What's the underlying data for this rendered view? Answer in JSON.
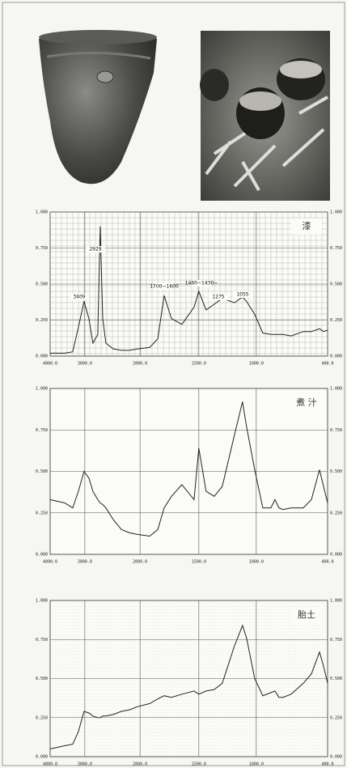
{
  "chart_data": [
    {
      "type": "line",
      "title": "漆",
      "color": "#222222",
      "x": [
        4000,
        3581,
        3349,
        3186,
        3023,
        2926,
        2853,
        2765,
        2721,
        2676,
        2618,
        2485,
        2338,
        2191,
        2044,
        1918,
        1849,
        1795,
        1733,
        1644,
        1541,
        1500,
        1437,
        1366,
        1296,
        1190,
        1120,
        1085,
        1014,
        945,
        877,
        843,
        809,
        775,
        707,
        604,
        536,
        468,
        434,
        400
      ],
      "values": [
        0.02,
        0.02,
        0.03,
        0.2,
        0.38,
        0.26,
        0.09,
        0.15,
        0.9,
        0.26,
        0.09,
        0.05,
        0.04,
        0.04,
        0.05,
        0.06,
        0.12,
        0.42,
        0.26,
        0.22,
        0.34,
        0.45,
        0.32,
        0.36,
        0.4,
        0.37,
        0.41,
        0.38,
        0.29,
        0.16,
        0.15,
        0.15,
        0.15,
        0.15,
        0.14,
        0.17,
        0.17,
        0.19,
        0.17,
        0.18
      ],
      "annotations": [
        "3409",
        "2929",
        "1700~1600",
        "1460~1430~",
        "1275",
        "1055"
      ],
      "xlim": [
        4000,
        400
      ],
      "xticks": [
        {
          "value": 4000,
          "label": "4000.0"
        },
        {
          "value": 3000,
          "label": "3000.0"
        },
        {
          "value": 2000,
          "label": "2000.0"
        },
        {
          "value": 1500,
          "label": "1500.0"
        },
        {
          "value": 1000,
          "label": "1000.0"
        },
        {
          "value": 400,
          "label": "400.0"
        }
      ],
      "ylim": [
        0,
        1
      ],
      "yticks": [
        {
          "value": 0,
          "label": "0.000"
        },
        {
          "value": 0.25,
          "label": "0.250"
        },
        {
          "value": 0.5,
          "label": "0.500"
        },
        {
          "value": 0.75,
          "label": "0.750"
        },
        {
          "value": 1,
          "label": "1.000"
        }
      ],
      "grid": true
    },
    {
      "type": "line",
      "title": "煮 汁",
      "color": "#222222",
      "x": [
        4000,
        3581,
        3349,
        3186,
        3023,
        2926,
        2853,
        2765,
        2721,
        2676,
        2618,
        2485,
        2338,
        2191,
        2044,
        1918,
        1849,
        1795,
        1733,
        1644,
        1541,
        1500,
        1437,
        1366,
        1296,
        1190,
        1120,
        1085,
        1014,
        945,
        877,
        843,
        809,
        775,
        707,
        604,
        536,
        468,
        434,
        400
      ],
      "values": [
        0.33,
        0.31,
        0.28,
        0.38,
        0.5,
        0.46,
        0.38,
        0.33,
        0.31,
        0.3,
        0.28,
        0.21,
        0.15,
        0.13,
        0.12,
        0.11,
        0.15,
        0.28,
        0.35,
        0.42,
        0.33,
        0.64,
        0.38,
        0.35,
        0.41,
        0.72,
        0.92,
        0.77,
        0.51,
        0.28,
        0.28,
        0.33,
        0.28,
        0.27,
        0.28,
        0.28,
        0.33,
        0.51,
        0.41,
        0.31
      ],
      "xlim": [
        4000,
        400
      ],
      "xticks": [
        {
          "value": 4000,
          "label": "4000.0"
        },
        {
          "value": 3000,
          "label": "3000.0"
        },
        {
          "value": 2000,
          "label": "2000.0"
        },
        {
          "value": 1500,
          "label": "1500.0"
        },
        {
          "value": 1000,
          "label": "1000.0"
        },
        {
          "value": 400,
          "label": "400.0"
        }
      ],
      "ylim": [
        0,
        1
      ],
      "yticks": [
        {
          "value": 0,
          "label": "0.000"
        },
        {
          "value": 0.25,
          "label": "0.250"
        },
        {
          "value": 0.5,
          "label": "0.500"
        },
        {
          "value": 0.75,
          "label": "0.750"
        },
        {
          "value": 1,
          "label": "1.000"
        }
      ],
      "grid": true
    },
    {
      "type": "line",
      "title": "胎土",
      "color": "#222222",
      "x": [
        4000,
        3581,
        3349,
        3186,
        3023,
        2926,
        2853,
        2765,
        2721,
        2676,
        2618,
        2485,
        2338,
        2191,
        2044,
        1918,
        1849,
        1795,
        1733,
        1644,
        1541,
        1500,
        1437,
        1366,
        1296,
        1190,
        1120,
        1085,
        1014,
        945,
        877,
        843,
        809,
        775,
        707,
        604,
        536,
        468,
        434,
        400
      ],
      "values": [
        0.05,
        0.07,
        0.08,
        0.16,
        0.29,
        0.28,
        0.26,
        0.25,
        0.25,
        0.26,
        0.26,
        0.27,
        0.29,
        0.3,
        0.32,
        0.34,
        0.37,
        0.39,
        0.38,
        0.4,
        0.42,
        0.4,
        0.42,
        0.43,
        0.47,
        0.71,
        0.84,
        0.76,
        0.5,
        0.39,
        0.41,
        0.42,
        0.38,
        0.38,
        0.4,
        0.47,
        0.53,
        0.67,
        0.58,
        0.47
      ],
      "xlim": [
        4000,
        400
      ],
      "xticks": [
        {
          "value": 4000,
          "label": "4000.0"
        },
        {
          "value": 3000,
          "label": "3000.0"
        },
        {
          "value": 2000,
          "label": "2000.0"
        },
        {
          "value": 1500,
          "label": "1500.0"
        },
        {
          "value": 1000,
          "label": "1000.0"
        },
        {
          "value": 400,
          "label": "400.0"
        }
      ],
      "ylim": [
        0,
        1
      ],
      "yticks": [
        {
          "value": 0,
          "label": "0.000"
        },
        {
          "value": 0.25,
          "label": "0.250"
        },
        {
          "value": 0.5,
          "label": "0.500"
        },
        {
          "value": 0.75,
          "label": "0.750"
        },
        {
          "value": 1,
          "label": "1.000"
        }
      ],
      "grid": true
    }
  ]
}
